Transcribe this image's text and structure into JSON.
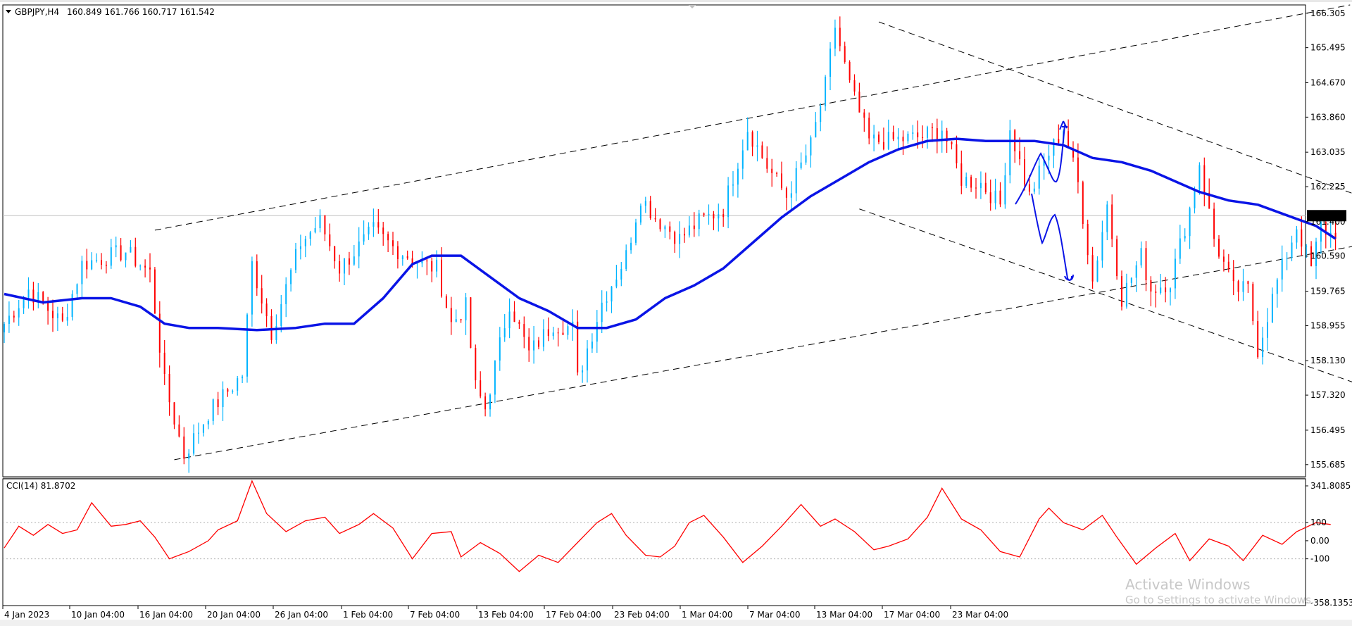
{
  "header": {
    "symbol": "GBPJPY,H4",
    "ohlc": "160.849 161.766 160.717 161.542"
  },
  "indicator": {
    "title": "CCI(14) 81.8702",
    "color": "#ff0000"
  },
  "watermark": {
    "line1": "Activate Windows",
    "line2": "Go to Settings to activate Windows."
  },
  "colors": {
    "bull": "#00b4ff",
    "bear": "#ff0000",
    "ma": "#0a14e6",
    "trend": "#000000",
    "current_price_box": "#000000",
    "background": "#ffffff"
  },
  "chart_data": [
    {
      "type": "candlestick",
      "symbol": "GBPJPY",
      "timeframe": "H4",
      "current_price": "161.542",
      "ylim": [
        155.4,
        166.5
      ],
      "y_ticks": [
        "166.305",
        "165.495",
        "164.670",
        "163.860",
        "163.035",
        "162.225",
        "161.400",
        "160.590",
        "159.765",
        "158.955",
        "158.130",
        "157.320",
        "156.495",
        "155.685"
      ],
      "x_ticks": [
        "4 Jan 2023",
        "10 Jan 04:00",
        "16 Jan 04:00",
        "20 Jan 04:00",
        "26 Jan 04:00",
        "1 Feb 04:00",
        "7 Feb 04:00",
        "13 Feb 04:00",
        "17 Feb 04:00",
        "23 Feb 04:00",
        "1 Mar 04:00",
        "7 Mar 04:00",
        "13 Mar 04:00",
        "17 Mar 04:00",
        "23 Mar 04:00"
      ],
      "price_path": [
        [
          0,
          159.0
        ],
        [
          5,
          159.8
        ],
        [
          12,
          159.0
        ],
        [
          16,
          160.4
        ],
        [
          25,
          160.7
        ],
        [
          30,
          160.2
        ],
        [
          33,
          157.6
        ],
        [
          37,
          155.9
        ],
        [
          42,
          156.9
        ],
        [
          49,
          157.8
        ],
        [
          51,
          160.4
        ],
        [
          55,
          158.8
        ],
        [
          61,
          160.9
        ],
        [
          65,
          161.4
        ],
        [
          69,
          160.3
        ],
        [
          76,
          161.2
        ],
        [
          80,
          160.8
        ],
        [
          86,
          160.4
        ],
        [
          89,
          160.3
        ],
        [
          92,
          159.0
        ],
        [
          95,
          159.4
        ],
        [
          97,
          157.5
        ],
        [
          99,
          157.0
        ],
        [
          104,
          159.5
        ],
        [
          108,
          158.3
        ],
        [
          113,
          159.0
        ],
        [
          117,
          158.9
        ],
        [
          118,
          157.7
        ],
        [
          123,
          159.5
        ],
        [
          128,
          160.6
        ],
        [
          131,
          162.0
        ],
        [
          134,
          161.5
        ],
        [
          139,
          161.0
        ],
        [
          143,
          161.4
        ],
        [
          148,
          161.7
        ],
        [
          153,
          163.6
        ],
        [
          157,
          162.7
        ],
        [
          161,
          162.0
        ],
        [
          166,
          163.2
        ],
        [
          169,
          164.6
        ],
        [
          171,
          166.0
        ],
        [
          174,
          164.6
        ],
        [
          178,
          163.3
        ],
        [
          182,
          163.3
        ],
        [
          189,
          163.4
        ],
        [
          193,
          163.6
        ],
        [
          197,
          162.4
        ],
        [
          201,
          162.3
        ],
        [
          205,
          161.8
        ],
        [
          207,
          163.6
        ],
        [
          211,
          162.0
        ],
        [
          214,
          162.8
        ],
        [
          218,
          163.6
        ],
        [
          221,
          162.3
        ],
        [
          224,
          160.0
        ],
        [
          227,
          161.8
        ],
        [
          230,
          159.6
        ],
        [
          234,
          160.6
        ],
        [
          236,
          159.8
        ],
        [
          240,
          160.0
        ],
        [
          244,
          161.7
        ],
        [
          246,
          162.8
        ],
        [
          249,
          161.0
        ],
        [
          253,
          159.8
        ],
        [
          256,
          159.8
        ],
        [
          258,
          158.4
        ],
        [
          262,
          160.0
        ],
        [
          266,
          161.3
        ],
        [
          269,
          160.3
        ],
        [
          271,
          161.3
        ],
        [
          274,
          161.0
        ]
      ],
      "moving_average": [
        [
          0,
          159.7
        ],
        [
          8,
          159.5
        ],
        [
          16,
          159.6
        ],
        [
          22,
          159.6
        ],
        [
          28,
          159.4
        ],
        [
          33,
          159.0
        ],
        [
          38,
          158.9
        ],
        [
          44,
          158.9
        ],
        [
          52,
          158.85
        ],
        [
          60,
          158.9
        ],
        [
          66,
          159.0
        ],
        [
          72,
          159.0
        ],
        [
          78,
          159.6
        ],
        [
          84,
          160.4
        ],
        [
          88,
          160.6
        ],
        [
          94,
          160.6
        ],
        [
          100,
          160.1
        ],
        [
          106,
          159.6
        ],
        [
          112,
          159.3
        ],
        [
          118,
          158.9
        ],
        [
          124,
          158.9
        ],
        [
          130,
          159.1
        ],
        [
          136,
          159.6
        ],
        [
          142,
          159.9
        ],
        [
          148,
          160.3
        ],
        [
          154,
          160.9
        ],
        [
          160,
          161.5
        ],
        [
          166,
          162.0
        ],
        [
          172,
          162.4
        ],
        [
          178,
          162.8
        ],
        [
          184,
          163.1
        ],
        [
          190,
          163.3
        ],
        [
          196,
          163.35
        ],
        [
          202,
          163.3
        ],
        [
          208,
          163.3
        ],
        [
          212,
          163.3
        ],
        [
          218,
          163.2
        ],
        [
          224,
          162.9
        ],
        [
          230,
          162.8
        ],
        [
          236,
          162.6
        ],
        [
          240,
          162.4
        ],
        [
          246,
          162.1
        ],
        [
          252,
          161.9
        ],
        [
          258,
          161.8
        ],
        [
          264,
          161.55
        ],
        [
          270,
          161.3
        ],
        [
          274,
          161.0
        ]
      ],
      "trend_lines": [
        {
          "name": "channel-upper",
          "from": [
            31,
            161.2
          ],
          "to": [
            277,
            166.5
          ]
        },
        {
          "name": "channel-lower",
          "from": [
            35,
            155.8
          ],
          "to": [
            354,
            162.4
          ]
        },
        {
          "name": "falling-upper",
          "from": [
            180,
            166.1
          ],
          "to": [
            354,
            158.9
          ]
        },
        {
          "name": "falling-lower",
          "from": [
            176,
            161.7
          ],
          "to": [
            333,
            155.4
          ]
        }
      ],
      "projection_drawings": [
        "up-scenario-arrow",
        "down-scenario-arrow"
      ]
    },
    {
      "type": "line",
      "name": "CCI(14)",
      "value": "81.8702",
      "ylim": [
        -358.1353,
        341.8085
      ],
      "y_ticks": [
        "341.8085",
        "100",
        "0.00",
        "-100",
        "-358.1353"
      ],
      "levels": [
        100,
        -100
      ],
      "series": [
        [
          0,
          -40
        ],
        [
          3,
          80
        ],
        [
          6,
          30
        ],
        [
          9,
          90
        ],
        [
          12,
          40
        ],
        [
          15,
          60
        ],
        [
          18,
          210
        ],
        [
          22,
          80
        ],
        [
          25,
          90
        ],
        [
          28,
          110
        ],
        [
          31,
          20
        ],
        [
          34,
          -100
        ],
        [
          38,
          -60
        ],
        [
          42,
          0
        ],
        [
          44,
          60
        ],
        [
          48,
          110
        ],
        [
          51,
          330
        ],
        [
          54,
          150
        ],
        [
          58,
          50
        ],
        [
          62,
          110
        ],
        [
          66,
          130
        ],
        [
          69,
          40
        ],
        [
          73,
          90
        ],
        [
          76,
          150
        ],
        [
          80,
          70
        ],
        [
          84,
          -100
        ],
        [
          88,
          40
        ],
        [
          92,
          50
        ],
        [
          94,
          -90
        ],
        [
          98,
          -10
        ],
        [
          102,
          -70
        ],
        [
          106,
          -170
        ],
        [
          110,
          -80
        ],
        [
          114,
          -120
        ],
        [
          118,
          -10
        ],
        [
          122,
          100
        ],
        [
          125,
          150
        ],
        [
          128,
          30
        ],
        [
          132,
          -80
        ],
        [
          135,
          -90
        ],
        [
          138,
          -30
        ],
        [
          141,
          100
        ],
        [
          144,
          140
        ],
        [
          148,
          20
        ],
        [
          152,
          -120
        ],
        [
          156,
          -30
        ],
        [
          160,
          80
        ],
        [
          164,
          200
        ],
        [
          168,
          80
        ],
        [
          171,
          120
        ],
        [
          175,
          50
        ],
        [
          179,
          -50
        ],
        [
          182,
          -30
        ],
        [
          186,
          10
        ],
        [
          190,
          130
        ],
        [
          193,
          290
        ],
        [
          197,
          120
        ],
        [
          201,
          60
        ],
        [
          205,
          -60
        ],
        [
          209,
          -90
        ],
        [
          213,
          120
        ],
        [
          215,
          180
        ],
        [
          218,
          100
        ],
        [
          222,
          60
        ],
        [
          226,
          140
        ],
        [
          229,
          20
        ],
        [
          233,
          -130
        ],
        [
          237,
          -40
        ],
        [
          241,
          40
        ],
        [
          244,
          -110
        ],
        [
          248,
          10
        ],
        [
          252,
          -30
        ],
        [
          255,
          -110
        ],
        [
          259,
          30
        ],
        [
          263,
          -20
        ],
        [
          266,
          50
        ],
        [
          270,
          100
        ],
        [
          273,
          90
        ]
      ]
    }
  ]
}
